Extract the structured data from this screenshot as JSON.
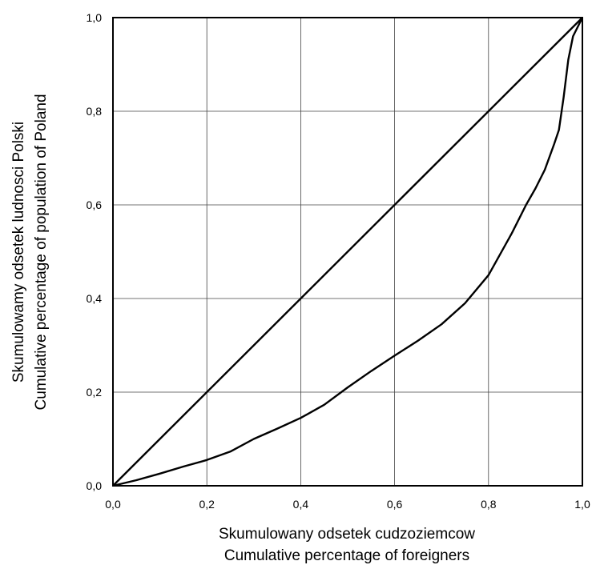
{
  "chart_data": {
    "type": "line",
    "title": "",
    "xlabel": [
      "Skumulowany odsetek cudzoziemcow",
      "Cumulative percentage of foreigners"
    ],
    "ylabel": [
      "Skumulowamy odsetek ludnosci Polski",
      "Cumulative percentage of population of Poland"
    ],
    "xlim": [
      0,
      1
    ],
    "ylim": [
      0,
      1
    ],
    "grid": true,
    "legend": "none",
    "x_ticks": [
      0,
      0.2,
      0.4,
      0.6,
      0.8,
      1.0
    ],
    "y_ticks": [
      0,
      0.2,
      0.4,
      0.6,
      0.8,
      1.0
    ],
    "x_tick_labels": [
      "0,0",
      "0,2",
      "0,4",
      "0,6",
      "0,8",
      "1,0"
    ],
    "y_tick_labels": [
      "0,0",
      "0,2",
      "0,4",
      "0,6",
      "0,8",
      "1,0"
    ],
    "series": [
      {
        "x": [
          0,
          1
        ],
        "y": [
          0,
          1
        ],
        "color": "#000000"
      },
      {
        "x": [
          0,
          0.05,
          0.1,
          0.15,
          0.2,
          0.25,
          0.3,
          0.35,
          0.4,
          0.45,
          0.5,
          0.55,
          0.6,
          0.65,
          0.7,
          0.75,
          0.8,
          0.85,
          0.88,
          0.9,
          0.92,
          0.94,
          0.95,
          0.96,
          0.97,
          0.98,
          1.0
        ],
        "y": [
          0,
          0.012,
          0.026,
          0.041,
          0.055,
          0.073,
          0.1,
          0.122,
          0.145,
          0.173,
          0.21,
          0.245,
          0.278,
          0.31,
          0.345,
          0.39,
          0.45,
          0.54,
          0.6,
          0.635,
          0.675,
          0.73,
          0.76,
          0.83,
          0.91,
          0.96,
          1.0
        ],
        "color": "#000000"
      }
    ]
  }
}
